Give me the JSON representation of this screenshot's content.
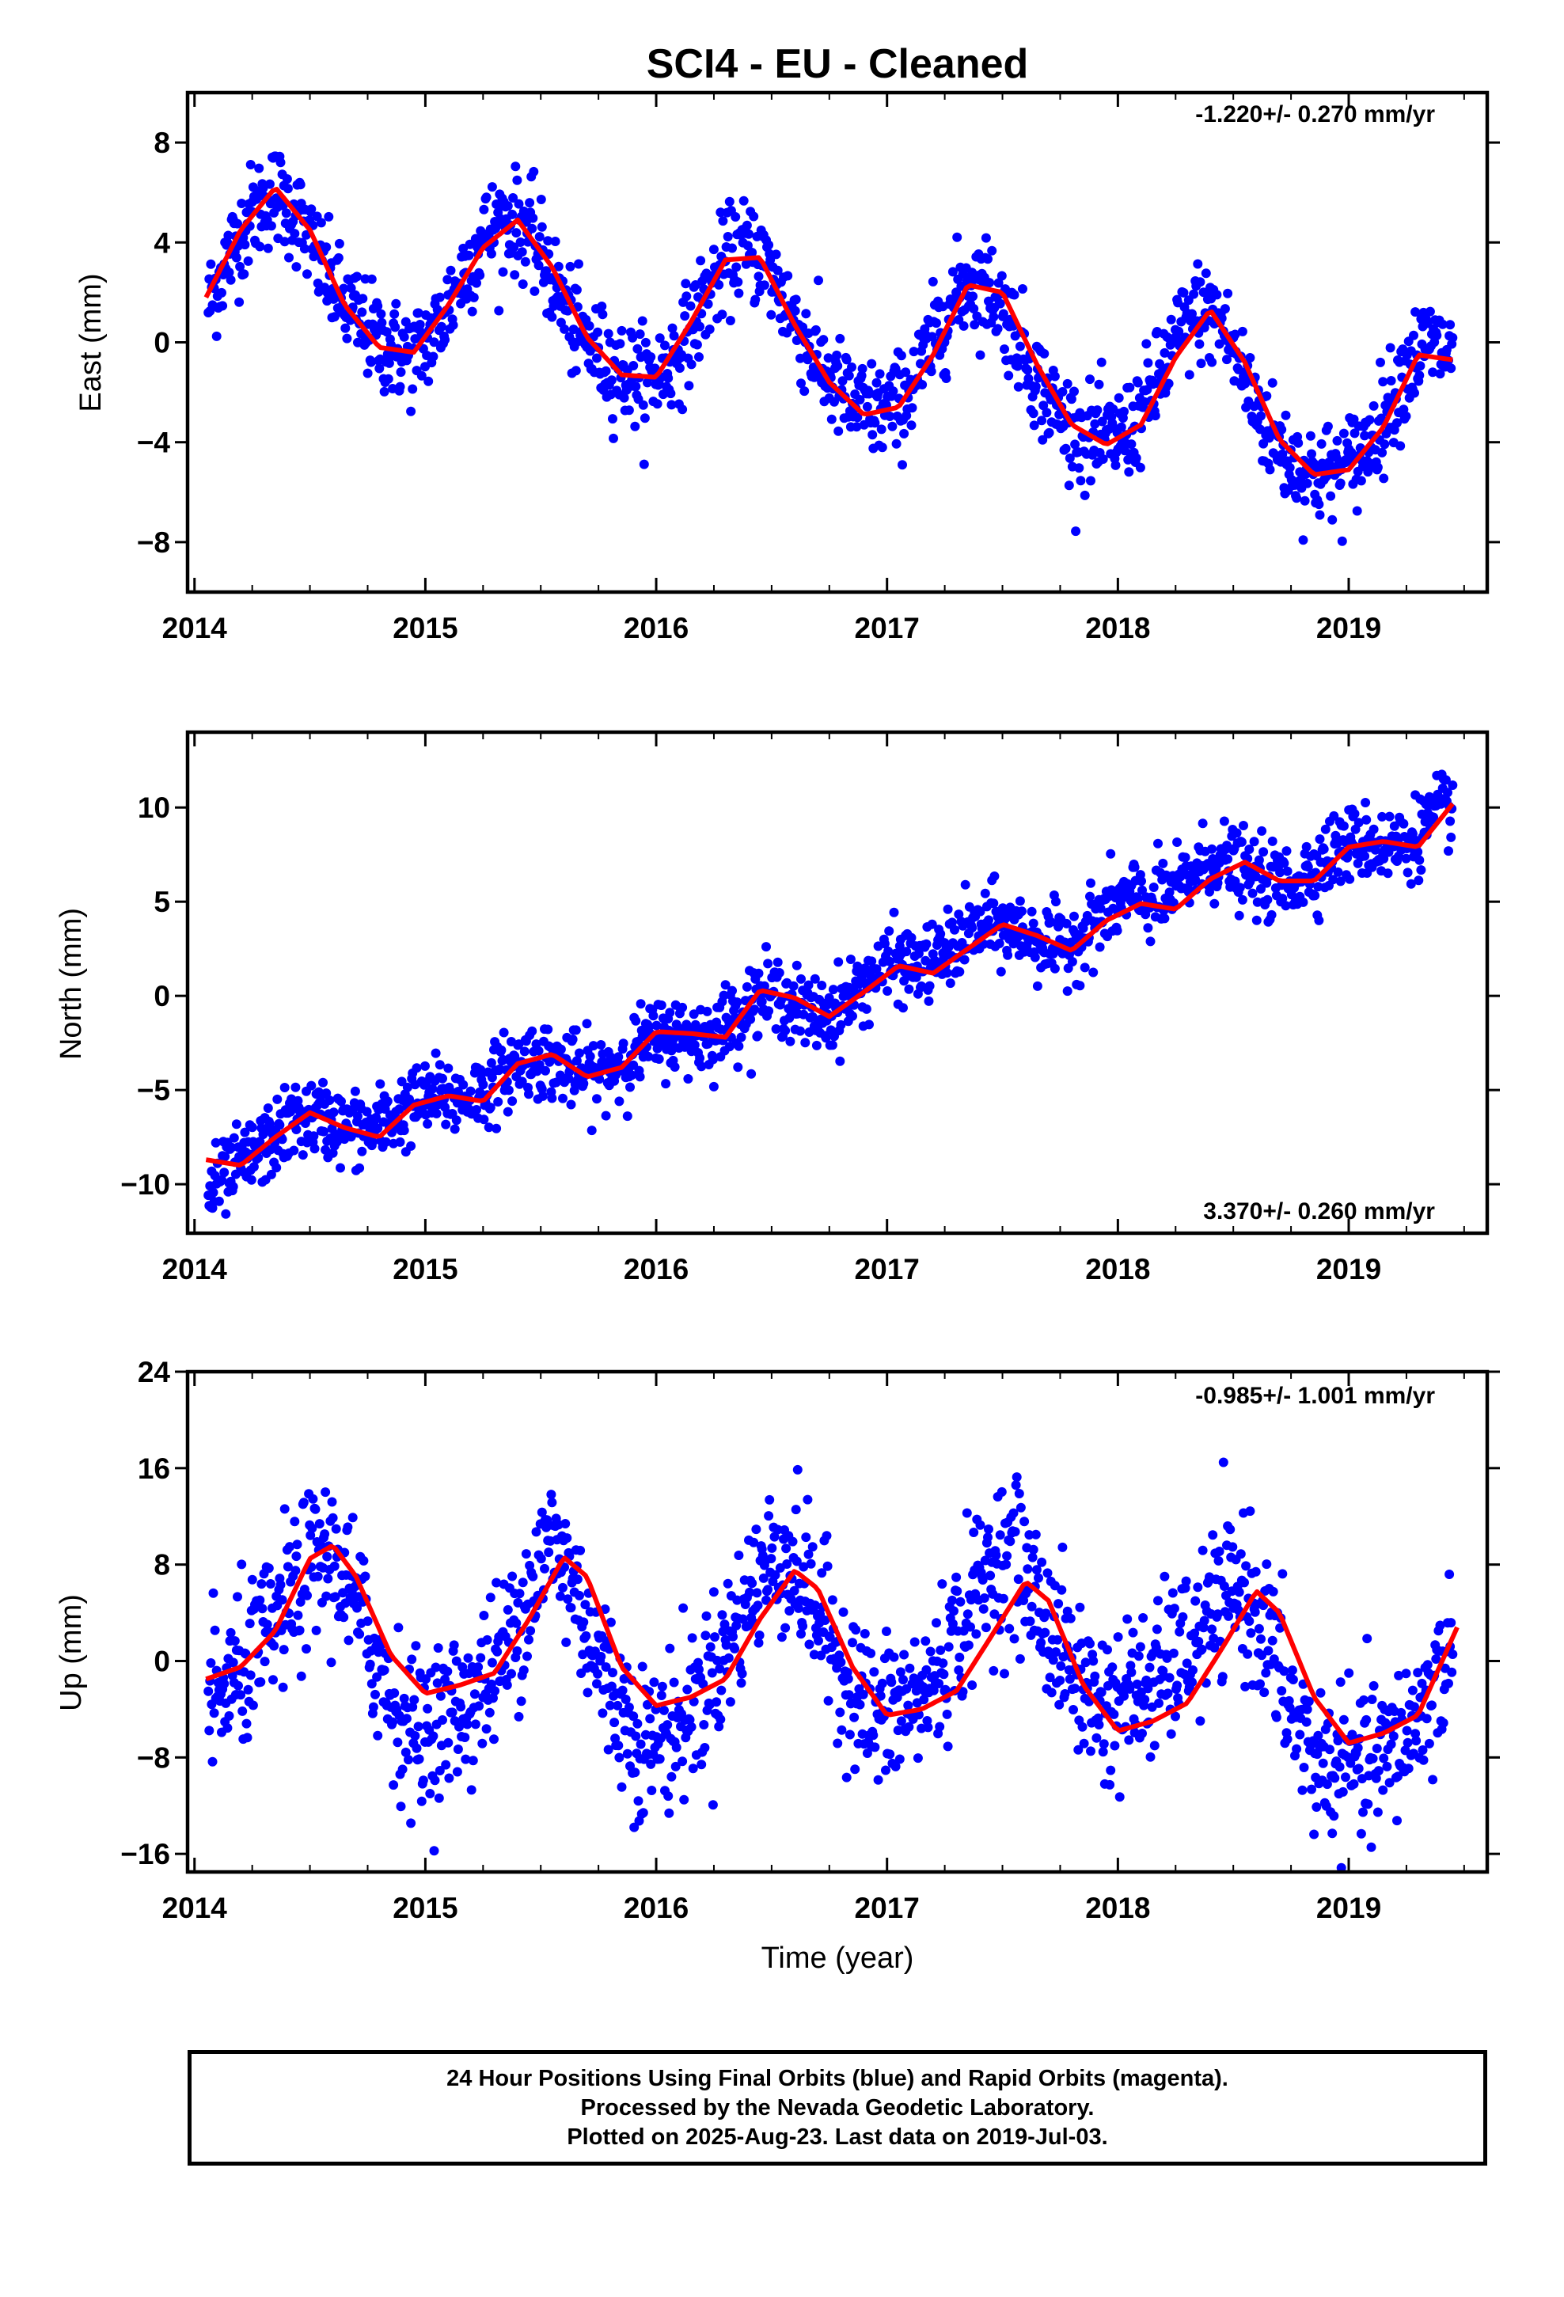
{
  "chart_data": [
    {
      "type": "scatter",
      "title": "SCI4  - EU - Cleaned",
      "ylabel": "East (mm)",
      "xlabel": "",
      "rate_label": "-1.220+/- 0.270 mm/yr",
      "xlim": [
        2013.97,
        2019.6
      ],
      "ylim": [
        -10,
        10
      ],
      "x_ticks": [
        2014,
        2015,
        2016,
        2017,
        2018,
        2019
      ],
      "y_ticks": [
        -8,
        -4,
        0,
        4,
        8
      ],
      "point_color": "#0000ff",
      "line_color": "#ff0000",
      "series": [
        {
          "x": [
            2014.06,
            2014.15,
            2014.25,
            2014.35,
            2014.45,
            2014.55,
            2014.65,
            2014.75,
            2014.85,
            2014.95,
            2015.05,
            2015.15,
            2015.25,
            2015.35,
            2015.45,
            2015.55,
            2015.65,
            2015.75,
            2015.85,
            2015.95,
            2016.05,
            2016.15,
            2016.25,
            2016.35,
            2016.45,
            2016.55,
            2016.65,
            2016.75,
            2016.85,
            2016.95,
            2017.05,
            2017.15,
            2017.25,
            2017.35,
            2017.45,
            2017.55,
            2017.65,
            2017.75,
            2017.85,
            2017.95,
            2018.05,
            2018.15,
            2018.25,
            2018.35,
            2018.45,
            2018.55,
            2018.65,
            2018.75,
            2018.85,
            2018.95,
            2019.05,
            2019.15,
            2019.25,
            2019.35,
            2019.45
          ],
          "y": [
            1.5,
            3.5,
            5.2,
            6.0,
            5.0,
            3.0,
            1.5,
            0.5,
            -0.3,
            -0.5,
            0.5,
            2.5,
            4.2,
            5.0,
            4.5,
            2.5,
            0.5,
            -0.5,
            -1.2,
            -1.5,
            -1.0,
            0.5,
            2.5,
            3.8,
            3.5,
            1.8,
            0,
            -1.5,
            -2.5,
            -2.8,
            -2.5,
            -1.0,
            1.0,
            2.5,
            2.2,
            0.5,
            -1.5,
            -3.0,
            -3.8,
            -4.0,
            -3.5,
            -2.0,
            0.0,
            1.3,
            0.8,
            -1.5,
            -3.5,
            -4.8,
            -5.3,
            -5.2,
            -4.5,
            -3.0,
            -1.0,
            0.0,
            -0.5
          ]
        },
        {
          "x": [
            2014.05,
            2014.2,
            2014.35,
            2014.5,
            2014.65,
            2014.8,
            2014.95,
            2015.1,
            2015.25,
            2015.4,
            2015.55,
            2015.7,
            2015.85,
            2016.0,
            2016.15,
            2016.3,
            2016.45,
            2016.6,
            2016.75,
            2016.9,
            2017.05,
            2017.2,
            2017.35,
            2017.5,
            2017.65,
            2017.8,
            2017.95,
            2018.1,
            2018.25,
            2018.4,
            2018.55,
            2018.7,
            2018.85,
            2019.0,
            2019.15,
            2019.3,
            2019.45
          ],
          "y": [
            1.8,
            4.5,
            6.2,
            4.5,
            1.5,
            -0.2,
            -0.4,
            1.5,
            3.8,
            4.9,
            3.0,
            0.2,
            -1.3,
            -1.4,
            0.8,
            3.3,
            3.4,
            0.7,
            -1.6,
            -2.9,
            -2.6,
            -0.5,
            2.3,
            2.0,
            -0.9,
            -3.3,
            -4.1,
            -3.3,
            -0.6,
            1.3,
            -0.8,
            -3.9,
            -5.3,
            -5.1,
            -3.4,
            -0.5,
            -0.7
          ]
        }
      ]
    },
    {
      "type": "scatter",
      "title": "",
      "ylabel": "North (mm)",
      "xlabel": "",
      "rate_label": "3.370+/- 0.260 mm/yr",
      "xlim": [
        2013.97,
        2019.6
      ],
      "ylim": [
        -12.6,
        14
      ],
      "x_ticks": [
        2014,
        2015,
        2016,
        2017,
        2018,
        2019
      ],
      "y_ticks": [
        -10,
        -5,
        0,
        5,
        10
      ],
      "point_color": "#0000ff",
      "line_color": "#ff0000",
      "series": [
        {
          "x": [
            2014.06,
            2014.15,
            2014.25,
            2014.35,
            2014.45,
            2014.55,
            2014.65,
            2014.75,
            2014.85,
            2014.95,
            2015.05,
            2015.15,
            2015.25,
            2015.35,
            2015.45,
            2015.55,
            2015.65,
            2015.75,
            2015.85,
            2015.95,
            2016.05,
            2016.15,
            2016.25,
            2016.35,
            2016.45,
            2016.55,
            2016.65,
            2016.75,
            2016.85,
            2016.95,
            2017.05,
            2017.15,
            2017.25,
            2017.35,
            2017.45,
            2017.55,
            2017.65,
            2017.75,
            2017.85,
            2017.95,
            2018.05,
            2018.15,
            2018.25,
            2018.35,
            2018.45,
            2018.55,
            2018.65,
            2018.75,
            2018.85,
            2018.95,
            2019.05,
            2019.15,
            2019.25,
            2019.35,
            2019.45
          ],
          "y": [
            -10.5,
            -9.5,
            -8.5,
            -7.5,
            -6.5,
            -6.5,
            -7.0,
            -7.2,
            -6.5,
            -5.8,
            -5.3,
            -5.5,
            -5.0,
            -4.0,
            -3.3,
            -3.5,
            -4.0,
            -4.2,
            -3.5,
            -2.5,
            -2.0,
            -2.2,
            -2.0,
            -1.0,
            0.0,
            0.0,
            -1.0,
            -1.0,
            0.0,
            1.2,
            1.8,
            1.5,
            2.2,
            3.3,
            3.8,
            3.5,
            3.0,
            2.5,
            3.3,
            4.5,
            5.2,
            5.0,
            5.5,
            6.8,
            7.3,
            6.5,
            6.0,
            6.0,
            6.8,
            7.8,
            8.2,
            8.0,
            8.0,
            9.3,
            10.2
          ]
        },
        {
          "x": [
            2014.05,
            2014.2,
            2014.35,
            2014.5,
            2014.65,
            2014.8,
            2014.95,
            2015.1,
            2015.25,
            2015.4,
            2015.55,
            2015.7,
            2015.85,
            2016.0,
            2016.15,
            2016.3,
            2016.45,
            2016.6,
            2016.75,
            2016.9,
            2017.05,
            2017.2,
            2017.35,
            2017.5,
            2017.65,
            2017.8,
            2017.95,
            2018.1,
            2018.25,
            2018.4,
            2018.55,
            2018.7,
            2018.85,
            2019.0,
            2019.15,
            2019.3,
            2019.45
          ],
          "y": [
            -8.7,
            -9.0,
            -7.5,
            -6.2,
            -7.0,
            -7.5,
            -5.8,
            -5.3,
            -5.6,
            -3.6,
            -3.1,
            -4.3,
            -3.8,
            -1.9,
            -2.0,
            -2.2,
            0.3,
            -0.1,
            -1.1,
            0.2,
            1.6,
            1.2,
            2.5,
            3.8,
            3.2,
            2.4,
            4.0,
            4.9,
            4.6,
            6.2,
            7.1,
            6.1,
            6.1,
            7.9,
            8.2,
            7.9,
            10.2
          ]
        }
      ]
    },
    {
      "type": "scatter",
      "title": "",
      "ylabel": "Up (mm)",
      "xlabel": "Time (year)",
      "rate_label": "-0.985+/- 1.001 mm/yr",
      "xlim": [
        2013.97,
        2019.6
      ],
      "ylim": [
        -17.5,
        24
      ],
      "x_ticks": [
        2014,
        2015,
        2016,
        2017,
        2018,
        2019
      ],
      "y_ticks": [
        -16,
        -8,
        0,
        8,
        16,
        24
      ],
      "point_color": "#0000ff",
      "line_color": "#ff0000",
      "series": [
        {
          "x": [
            2014.06,
            2014.15,
            2014.25,
            2014.35,
            2014.45,
            2014.55,
            2014.65,
            2014.75,
            2014.85,
            2014.95,
            2015.05,
            2015.15,
            2015.25,
            2015.35,
            2015.45,
            2015.55,
            2015.65,
            2015.75,
            2015.85,
            2015.95,
            2016.05,
            2016.15,
            2016.25,
            2016.35,
            2016.45,
            2016.55,
            2016.65,
            2016.75,
            2016.85,
            2016.95,
            2017.05,
            2017.15,
            2017.25,
            2017.35,
            2017.45,
            2017.55,
            2017.65,
            2017.75,
            2017.85,
            2017.95,
            2018.05,
            2018.15,
            2018.25,
            2018.35,
            2018.45,
            2018.55,
            2018.65,
            2018.75,
            2018.85,
            2018.95,
            2019.05,
            2019.15,
            2019.25,
            2019.35,
            2019.45
          ],
          "y": [
            -4,
            -2,
            0,
            3,
            6,
            9,
            7,
            2,
            -3,
            -6,
            -5,
            -4,
            -2,
            1,
            6,
            10,
            6,
            0,
            -4,
            -7,
            -6,
            -4,
            -1,
            3,
            7,
            9,
            6,
            2,
            -2,
            -5,
            -4,
            -3,
            0,
            4,
            8,
            9,
            5,
            1,
            -2,
            -4,
            -3,
            -2,
            0,
            2,
            5,
            6,
            2,
            -4,
            -8,
            -9,
            -9,
            -8,
            -6,
            -3,
            1
          ]
        },
        {
          "x": [
            2014.05,
            2014.2,
            2014.35,
            2014.5,
            2014.6,
            2014.7,
            2014.85,
            2015.0,
            2015.15,
            2015.3,
            2015.45,
            2015.6,
            2015.7,
            2015.85,
            2016.0,
            2016.15,
            2016.3,
            2016.45,
            2016.6,
            2016.7,
            2016.85,
            2017.0,
            2017.15,
            2017.3,
            2017.45,
            2017.6,
            2017.7,
            2017.85,
            2018.0,
            2018.15,
            2018.3,
            2018.45,
            2018.6,
            2018.7,
            2018.85,
            2019.0,
            2019.15,
            2019.3,
            2019.47
          ],
          "y": [
            -1.5,
            -0.5,
            2.5,
            8.5,
            9.6,
            7.0,
            0.5,
            -2.7,
            -2.0,
            -1.0,
            3.5,
            8.6,
            7.0,
            -0.5,
            -3.7,
            -3.0,
            -1.5,
            3.5,
            7.5,
            6.0,
            -0.5,
            -4.5,
            -4.0,
            -2.5,
            2.0,
            6.6,
            5.0,
            -2.0,
            -5.8,
            -5.0,
            -3.5,
            1.0,
            5.8,
            4.0,
            -3.0,
            -6.8,
            -6.0,
            -4.5,
            2.8
          ]
        }
      ]
    }
  ],
  "footer": {
    "line1": "24 Hour Positions Using Final Orbits (blue) and Rapid Orbits (magenta).",
    "line2": "Processed by the Nevada Geodetic Laboratory.",
    "line3": "Plotted on 2025-Aug-23. Last data on 2019-Jul-03."
  }
}
